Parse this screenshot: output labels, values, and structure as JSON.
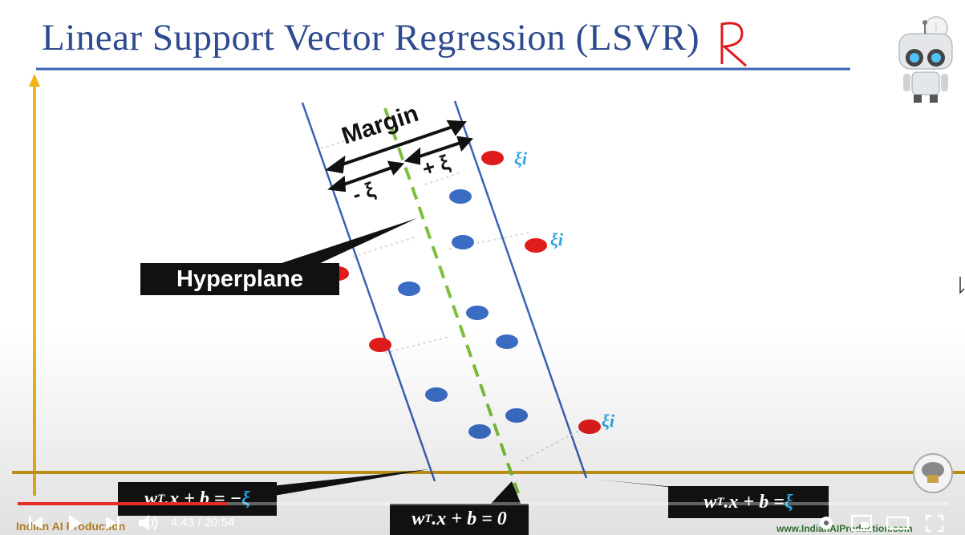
{
  "slide": {
    "title": "Linear Support Vector Regression (LSVR)",
    "annotation_letter": "R",
    "margin_label": "Margin",
    "minus_xi_label": "- ξ",
    "plus_xi_label": "+ ξ",
    "xi_label": "ξi",
    "hyperplane_label": "Hyperplane",
    "eq_minus": {
      "left": "w",
      "sup": "T",
      "mid": ".x + b = −",
      "xi": "ξ"
    },
    "eq_zero": {
      "left": "w",
      "sup": "T",
      "mid": ".x + b = 0"
    },
    "eq_plus": {
      "left": "w",
      "sup": "T",
      "mid": ".x + b = ",
      "xi": "ξ"
    },
    "watermark_left": "Indian AI Production",
    "watermark_right": "www.IndianAIProduction.com"
  },
  "player": {
    "current_time": "4:43",
    "separator": " / ",
    "duration": "20:54",
    "progress": 0.225,
    "info_label": "i"
  },
  "colors": {
    "title": "#2f4b8f",
    "axis": "#f2b217",
    "baseline": "#c89a16",
    "band": "#3a62b3",
    "hyperplane": "#7bbf3a",
    "blue_point": "#3b6cc4",
    "red_point": "#e01b1b",
    "xi": "#2aa7e0",
    "progress": "#e52d27"
  }
}
